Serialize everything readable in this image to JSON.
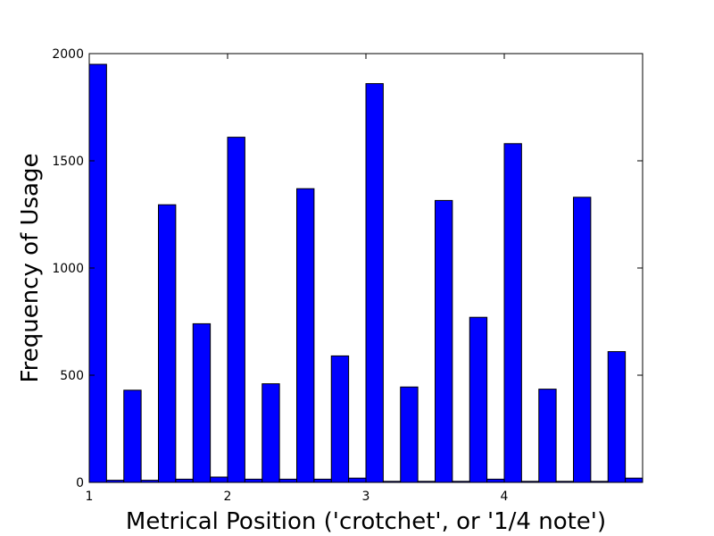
{
  "chart_data": {
    "type": "bar",
    "xlabel": "Metrical Position ('crotchet', or '1/4 note')",
    "ylabel": "Frequency of Usage",
    "xlim": [
      1,
      5
    ],
    "ylim": [
      0,
      2000
    ],
    "bar_width": 0.125,
    "bar_color": "#0000ff",
    "xticks": [
      "1",
      "2",
      "3",
      "4"
    ],
    "yticks": [
      "0",
      "500",
      "1000",
      "1500",
      "2000"
    ],
    "grid": false,
    "x": [
      1.0,
      1.125,
      1.25,
      1.375,
      1.5,
      1.625,
      1.75,
      1.875,
      2.0,
      2.125,
      2.25,
      2.375,
      2.5,
      2.625,
      2.75,
      2.875,
      3.0,
      3.125,
      3.25,
      3.375,
      3.5,
      3.625,
      3.75,
      3.875,
      4.0,
      4.125,
      4.25,
      4.375,
      4.5,
      4.625,
      4.75,
      4.875
    ],
    "values": [
      1950,
      10,
      430,
      10,
      1295,
      15,
      740,
      25,
      1610,
      15,
      460,
      15,
      1370,
      15,
      590,
      20,
      1860,
      5,
      445,
      5,
      1315,
      5,
      770,
      15,
      1580,
      5,
      435,
      5,
      1330,
      5,
      610,
      20
    ]
  }
}
